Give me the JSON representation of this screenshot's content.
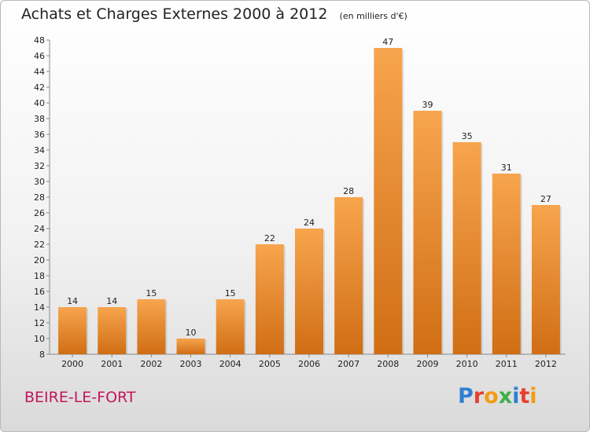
{
  "header": {
    "title": "Achats et Charges Externes 2000 à 2012",
    "unit": "(en milliers d'€)"
  },
  "footer": {
    "location": "BEIRE-LE-FORT",
    "brand": "Proxiti"
  },
  "colors": {
    "bar_light": "#f7a54e",
    "bar_dark": "#d06e14",
    "title": "#222222",
    "location": "#c2185b"
  },
  "chart_data": {
    "type": "bar",
    "title": "Achats et Charges Externes 2000 à 2012",
    "subtitle": "(en milliers d'€)",
    "xlabel": "",
    "ylabel": "",
    "categories": [
      "2000",
      "2001",
      "2002",
      "2003",
      "2004",
      "2005",
      "2006",
      "2007",
      "2008",
      "2009",
      "2010",
      "2011",
      "2012"
    ],
    "values": [
      14,
      14,
      15,
      10,
      15,
      22,
      24,
      28,
      47,
      39,
      35,
      31,
      27
    ],
    "ylim": [
      8,
      48
    ],
    "yticks": [
      8,
      10,
      12,
      14,
      16,
      18,
      20,
      22,
      24,
      26,
      28,
      30,
      32,
      34,
      36,
      38,
      40,
      42,
      44,
      46,
      48
    ],
    "grid": false,
    "legend": "none",
    "data_labels": true
  }
}
